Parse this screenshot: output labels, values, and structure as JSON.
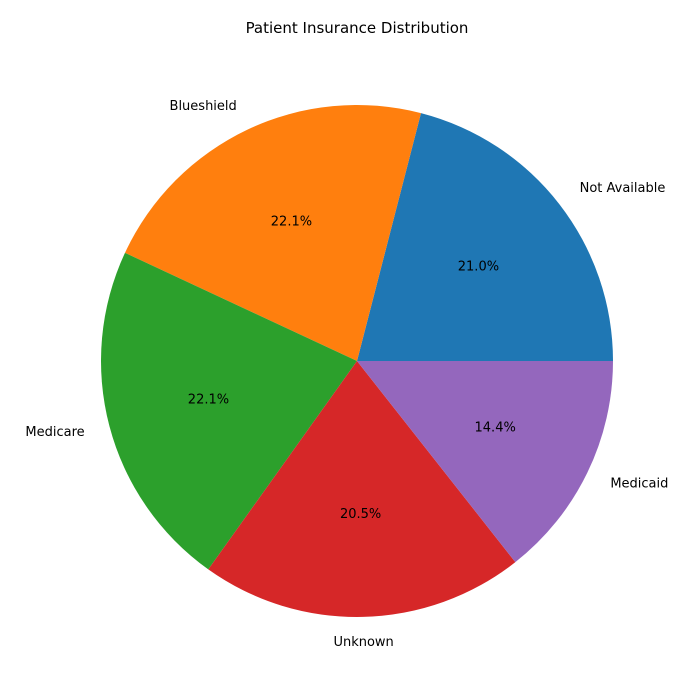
{
  "chart_data": {
    "type": "pie",
    "title": "Patient Insurance Distribution",
    "slices": [
      {
        "label": "Not Available",
        "percent_label": "21.0%",
        "value": 21.0,
        "color": "#1f77b4"
      },
      {
        "label": "Blueshield",
        "percent_label": "22.1%",
        "value": 22.1,
        "color": "#ff7f0e"
      },
      {
        "label": "Medicare",
        "percent_label": "22.1%",
        "value": 22.1,
        "color": "#2ca02c"
      },
      {
        "label": "Unknown",
        "percent_label": "20.5%",
        "value": 20.5,
        "color": "#d62728"
      },
      {
        "label": "Medicaid",
        "percent_label": "14.4%",
        "value": 14.4,
        "color": "#9467bd"
      }
    ],
    "start_angle": "0° (3 o'clock)",
    "direction": "counterclockwise"
  }
}
